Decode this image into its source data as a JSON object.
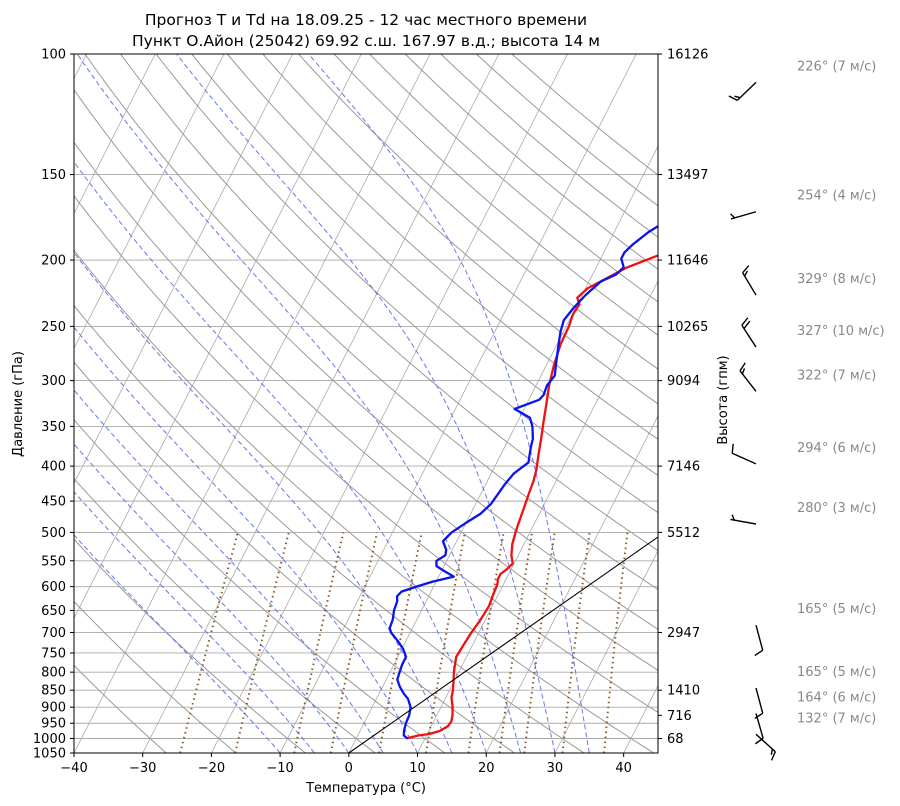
{
  "chart_data": {
    "type": "line",
    "title": "Прогноз T и Td на 18.09.25 - 12 час местного времени",
    "subtitle": "Пункт О.Айон (25042) 69.92 с.ш. 167.97 в.д.; высота 14 м",
    "xlabel": "Температура (°C)",
    "ylabel": "Давление (гПа)",
    "y2label": "Высота (гпм)",
    "xlim": [
      -40,
      45
    ],
    "ylim": [
      1050,
      100
    ],
    "y_scale": "log",
    "grid": true,
    "x_ticks": [
      "−40",
      "−30",
      "−20",
      "−10",
      "0",
      "10",
      "20",
      "30",
      "40"
    ],
    "x_tick_values": [
      -40,
      -30,
      -20,
      -10,
      0,
      10,
      20,
      30,
      40
    ],
    "y_tick_values": [
      100,
      150,
      200,
      250,
      300,
      350,
      400,
      450,
      500,
      550,
      600,
      650,
      700,
      750,
      800,
      850,
      900,
      950,
      1000,
      1050
    ],
    "y_ticks": [
      "100",
      "150",
      "200",
      "250",
      "300",
      "350",
      "400",
      "450",
      "500",
      "550",
      "600",
      "650",
      "700",
      "750",
      "800",
      "850",
      "900",
      "950",
      "1000",
      "1050"
    ],
    "height_labels": [
      {
        "p": 100,
        "label": "16126"
      },
      {
        "p": 150,
        "label": "13497"
      },
      {
        "p": 200,
        "label": "11646"
      },
      {
        "p": 250,
        "label": "10265"
      },
      {
        "p": 300,
        "label": "9094"
      },
      {
        "p": 400,
        "label": "7146"
      },
      {
        "p": 500,
        "label": "5512"
      },
      {
        "p": 700,
        "label": "2947"
      },
      {
        "p": 850,
        "label": "1410"
      },
      {
        "p": 925,
        "label": "716"
      },
      {
        "p": 1000,
        "label": "68"
      }
    ],
    "series": [
      {
        "color": "#ee1111",
        "points": [
          [
            7.3,
            1000
          ],
          [
            8.8,
            990
          ],
          [
            10.3,
            985
          ],
          [
            11.6,
            975
          ],
          [
            12.4,
            960
          ],
          [
            12.6,
            945
          ],
          [
            12.3,
            925
          ],
          [
            11.7,
            900
          ],
          [
            10.8,
            870
          ],
          [
            10.5,
            850
          ],
          [
            9.8,
            820
          ],
          [
            9.3,
            800
          ],
          [
            8.9,
            780
          ],
          [
            8.5,
            760
          ],
          [
            8.7,
            730
          ],
          [
            8.9,
            700
          ],
          [
            9.3,
            670
          ],
          [
            9.5,
            640
          ],
          [
            9.3,
            620
          ],
          [
            9.1,
            595
          ],
          [
            8.8,
            585
          ],
          [
            8.8,
            575
          ],
          [
            9.4,
            565
          ],
          [
            9.8,
            555
          ],
          [
            9.0,
            540
          ],
          [
            8.3,
            520
          ],
          [
            7.9,
            500
          ],
          [
            7.6,
            480
          ],
          [
            7.3,
            460
          ],
          [
            7.0,
            440
          ],
          [
            6.7,
            420
          ],
          [
            6.3,
            405
          ],
          [
            5.5,
            385
          ],
          [
            4.7,
            365
          ],
          [
            3.8,
            345
          ],
          [
            2.9,
            325
          ],
          [
            1.9,
            305
          ],
          [
            1.1,
            285
          ],
          [
            0.5,
            265
          ],
          [
            0.4,
            250
          ],
          [
            0.1,
            240
          ],
          [
            0.3,
            232
          ],
          [
            -0.5,
            227
          ],
          [
            0.3,
            220
          ],
          [
            2.5,
            212
          ],
          [
            4.5,
            205
          ],
          [
            9.0,
            195
          ],
          [
            13.0,
            185
          ],
          [
            16.1,
            175
          ],
          [
            19.2,
            165
          ],
          [
            22.5,
            158
          ],
          [
            26.0,
            150
          ],
          [
            30.2,
            140
          ],
          [
            33.5,
            132
          ],
          [
            36.4,
            125
          ],
          [
            39.2,
            118
          ],
          [
            42.0,
            112
          ],
          [
            45.0,
            106
          ]
        ]
      },
      {
        "color": "#0a14ee",
        "points": [
          [
            7.5,
            1000
          ],
          [
            6.7,
            990
          ],
          [
            6.4,
            975
          ],
          [
            6.1,
            950
          ],
          [
            6.0,
            925
          ],
          [
            5.6,
            900
          ],
          [
            4.6,
            875
          ],
          [
            3.6,
            860
          ],
          [
            2.5,
            840
          ],
          [
            1.6,
            820
          ],
          [
            1.4,
            800
          ],
          [
            1.2,
            780
          ],
          [
            1.2,
            760
          ],
          [
            0.2,
            740
          ],
          [
            -1.2,
            720
          ],
          [
            -2.8,
            700
          ],
          [
            -3.3,
            690
          ],
          [
            -3.5,
            670
          ],
          [
            -4.0,
            650
          ],
          [
            -4.2,
            630
          ],
          [
            -4.6,
            620
          ],
          [
            -4.3,
            610
          ],
          [
            -2.5,
            600
          ],
          [
            -0.5,
            590
          ],
          [
            2.2,
            580
          ],
          [
            0.5,
            570
          ],
          [
            -1.1,
            560
          ],
          [
            -1.5,
            550
          ],
          [
            -0.6,
            540
          ],
          [
            -0.9,
            530
          ],
          [
            -2.0,
            515
          ],
          [
            -1.4,
            500
          ],
          [
            -0.1,
            485
          ],
          [
            1.4,
            470
          ],
          [
            2.2,
            455
          ],
          [
            2.5,
            440
          ],
          [
            2.8,
            425
          ],
          [
            3.3,
            410
          ],
          [
            4.6,
            395
          ],
          [
            4.2,
            385
          ],
          [
            3.8,
            375
          ],
          [
            3.5,
            365
          ],
          [
            2.5,
            350
          ],
          [
            1.5,
            340
          ],
          [
            -1.4,
            330
          ],
          [
            1.5,
            320
          ],
          [
            1.8,
            315
          ],
          [
            1.6,
            305
          ],
          [
            2.0,
            295
          ],
          [
            1.4,
            285
          ],
          [
            0.5,
            270
          ],
          [
            -0.4,
            255
          ],
          [
            -0.8,
            245
          ],
          [
            -0.3,
            235
          ],
          [
            0.5,
            225
          ],
          [
            1.7,
            215
          ],
          [
            3.4,
            210
          ],
          [
            4.0,
            205
          ],
          [
            3.0,
            199
          ],
          [
            3.0,
            195
          ],
          [
            3.6,
            190
          ],
          [
            5.0,
            182
          ],
          [
            6.9,
            175
          ],
          [
            8.6,
            168
          ],
          [
            10.7,
            160
          ],
          [
            12.7,
            150
          ],
          [
            14.8,
            143
          ],
          [
            16.9,
            137
          ],
          [
            19.0,
            130
          ],
          [
            21.1,
            124
          ],
          [
            23.6,
            117
          ],
          [
            25.7,
            111
          ],
          [
            27.6,
            106
          ],
          [
            29.5,
            101
          ]
        ]
      },
      {
        "color": "#000000",
        "points": [
          [
            0,
            1050
          ],
          [
            41.4,
            372
          ]
        ]
      }
    ],
    "winds": [
      {
        "p": 110,
        "label": "226° (7 м/с)",
        "dir": 226,
        "speed": 7
      },
      {
        "p": 170,
        "label": "254° (4 м/с)",
        "dir": 254,
        "speed": 4
      },
      {
        "p": 225,
        "label": "329° (8 м/с)",
        "dir": 329,
        "speed": 8
      },
      {
        "p": 268,
        "label": "327° (10 м/с)",
        "dir": 327,
        "speed": 10
      },
      {
        "p": 311,
        "label": "322° (7 м/с)",
        "dir": 322,
        "speed": 7
      },
      {
        "p": 397,
        "label": "294° (6 м/с)",
        "dir": 294,
        "speed": 6
      },
      {
        "p": 486,
        "label": "280° (3 м/с)",
        "dir": 280,
        "speed": 3
      },
      {
        "p": 683,
        "label": "165° (5 м/с)",
        "dir": 165,
        "speed": 5
      },
      {
        "p": 844,
        "label": "165° (5 м/с)",
        "dir": 165,
        "speed": 5
      },
      {
        "p": 919,
        "label": "164° (6 м/с)",
        "dir": 164,
        "speed": 6
      },
      {
        "p": 986,
        "label": "132° (7 м/с)",
        "dir": 132,
        "speed": 7
      }
    ],
    "colors": {
      "temperature": "#ee1111",
      "dewpoint": "#0a14ee",
      "dry_adiabats": "#999999",
      "moist_adiabats": "#6677ee",
      "mixing_ratio": "#8b5a2b",
      "grid": "#aaaaaa",
      "wind_label": "#888888"
    }
  }
}
